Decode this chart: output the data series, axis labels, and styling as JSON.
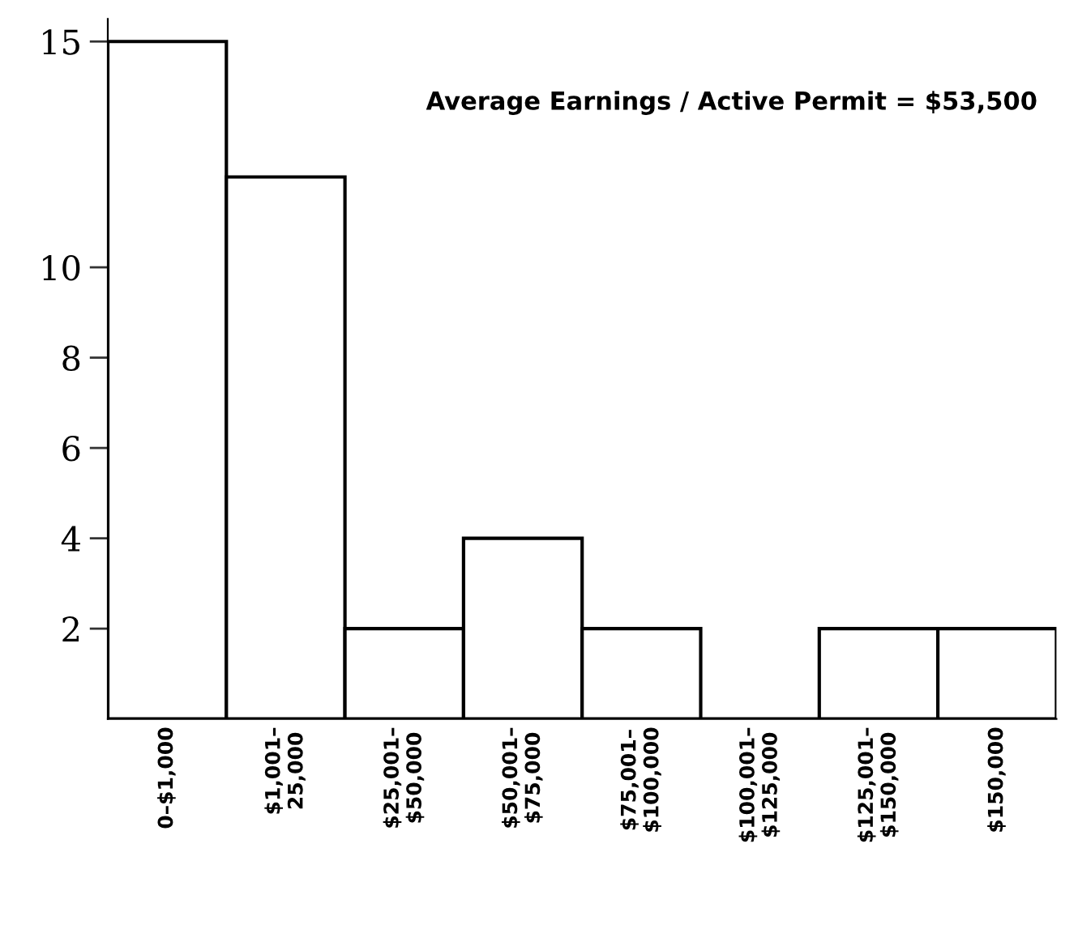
{
  "chart_data": {
    "type": "bar",
    "categories": [
      "0–$1,000",
      "$1,001–\n25,000",
      "$25,001–\n$50,000",
      "$50,001–\n$75,000",
      "$75,001–\n$100,000",
      "$100,001–\n$125,000",
      "$125,001–\n$150,000",
      "$150,000"
    ],
    "values": [
      15,
      12,
      2,
      4,
      2,
      0,
      2,
      2
    ],
    "color": "#000000",
    "ylim": [
      0,
      15.5
    ],
    "yticks": [
      2,
      4,
      6,
      8,
      10,
      15
    ],
    "annotations": [
      "Average Earnings / Active Permit = $53,500"
    ],
    "grid": false,
    "legend": false
  }
}
